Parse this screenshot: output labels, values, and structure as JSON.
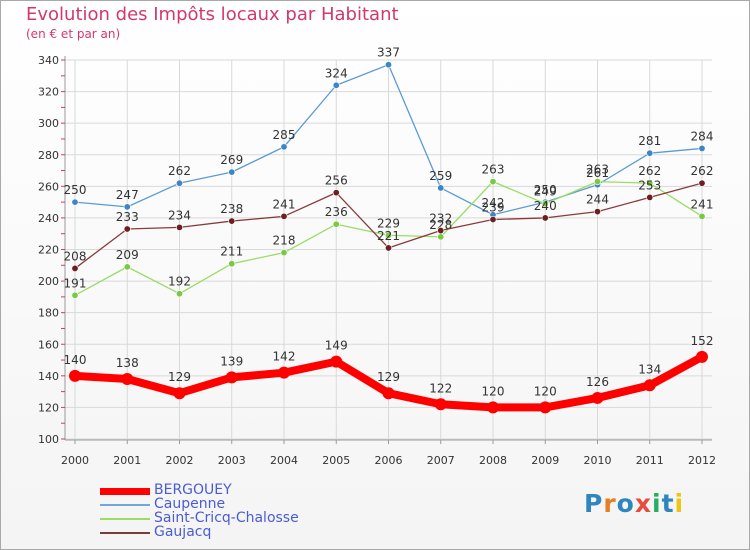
{
  "title": "Evolution des Impôts locaux par Habitant",
  "subtitle": "(en € et par an)",
  "logo": {
    "text": "Proxiti",
    "letter_colors": [
      "#2e86c1",
      "#e67e22",
      "#2e86c1",
      "#e74c3c",
      "#27ae60",
      "#2e86c1",
      "#f1c40f"
    ]
  },
  "legend": [
    {
      "label": "BERGOUEY",
      "color": "#ff0000",
      "thick": true
    },
    {
      "label": "Caupenne",
      "color": "#6fa8dc",
      "thick": false
    },
    {
      "label": "Saint-Cricq-Chalosse",
      "color": "#99dd66",
      "thick": false
    },
    {
      "label": "Gaujacq",
      "color": "#7a3b3b",
      "thick": false
    }
  ],
  "chart_data": {
    "type": "line",
    "title": "Evolution des Impôts locaux par Habitant",
    "ylabel": "(en € et par an)",
    "xlabel": "",
    "categories": [
      "2000",
      "2001",
      "2002",
      "2003",
      "2004",
      "2005",
      "2006",
      "2007",
      "2008",
      "2009",
      "2010",
      "2011",
      "2012"
    ],
    "ylim": [
      100,
      340
    ],
    "yticks": [
      100,
      120,
      140,
      160,
      180,
      200,
      220,
      240,
      260,
      280,
      300,
      320,
      340
    ],
    "grid": true,
    "series": [
      {
        "name": "Caupenne",
        "color": "#5b9bd5",
        "marker": "#3d85c6",
        "values": [
          250,
          247,
          262,
          269,
          285,
          324,
          337,
          259,
          242,
          250,
          261,
          281,
          284
        ],
        "labels": [
          "250",
          "247",
          "262",
          "269",
          "285",
          "324",
          "337",
          "259",
          "242",
          "250",
          "261",
          "281",
          "284"
        ]
      },
      {
        "name": "Saint-Cricq-Chalosse",
        "color": "#99dd66",
        "marker": "#7ac943",
        "values": [
          191,
          209,
          192,
          211,
          218,
          236,
          229,
          228,
          263,
          249,
          263,
          262,
          241
        ],
        "labels": [
          "191",
          "209",
          "192",
          "211",
          "218",
          "236",
          "229",
          "228",
          "263",
          "249",
          "263",
          "262",
          "241"
        ]
      },
      {
        "name": "Gaujacq",
        "color": "#8b3a3a",
        "marker": "#6b1f1f",
        "values": [
          208,
          233,
          234,
          238,
          241,
          256,
          221,
          232,
          239,
          240,
          244,
          253,
          262
        ],
        "labels": [
          "208",
          "233",
          "234",
          "238",
          "241",
          "256",
          "221",
          "232",
          "239",
          "240",
          "244",
          "253",
          "262"
        ]
      },
      {
        "name": "BERGOUEY",
        "color": "#ff0000",
        "marker": "#ff0000",
        "values": [
          140,
          138,
          129,
          139,
          142,
          149,
          129,
          122,
          120,
          120,
          126,
          134,
          152
        ],
        "labels": [
          "140",
          "138",
          "129",
          "139",
          "142",
          "149",
          "129",
          "122",
          "120",
          "120",
          "126",
          "134",
          "152"
        ]
      }
    ]
  }
}
